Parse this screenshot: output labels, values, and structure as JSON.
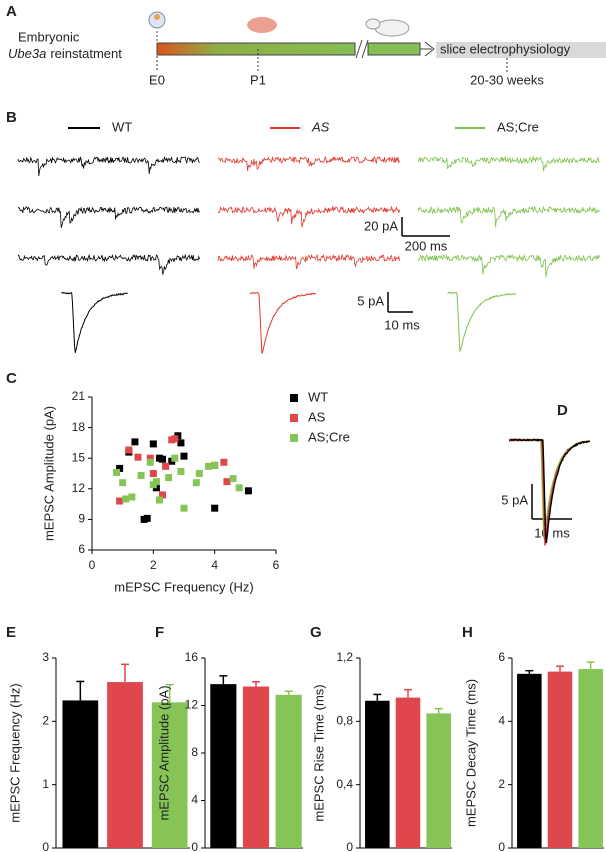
{
  "panel_a": {
    "label": "A",
    "embryonic": "Embryonic",
    "gene": "Ube3a",
    "reinstatement": "reinstatment",
    "stage_label": "slice electrophysiology",
    "ticks": [
      "E0",
      "P1",
      "20-30 weeks"
    ]
  },
  "panel_b": {
    "label": "B",
    "legend": [
      {
        "name": "WT",
        "color": "#000000"
      },
      {
        "name": "AS",
        "color": "#e0382e"
      },
      {
        "name": "AS;Cre",
        "color": "#7cc24a"
      }
    ],
    "scale_bars": [
      "20 pA",
      "200 ms",
      "5 pA",
      "10 ms"
    ]
  },
  "panel_d": {
    "label": "D",
    "scale_bars": [
      "5 pA",
      "10 ms"
    ]
  },
  "chart_data": [
    {
      "type": "scatter",
      "label": "C",
      "xlabel": "mEPSC Frequency (Hz)",
      "ylabel": "mEPSC Amplitude (pA)",
      "xlim": [
        0,
        6
      ],
      "xticks": [
        0,
        2,
        4,
        6
      ],
      "ylim": [
        6,
        21
      ],
      "yticks": [
        6,
        9,
        12,
        15,
        18,
        21
      ],
      "series": [
        {
          "name": "WT",
          "color": "#000000",
          "x": [
            0.9,
            1.4,
            1.2,
            1.7,
            1.8,
            2.0,
            2.2,
            2.1,
            2.6,
            2.8,
            2.9,
            3.0,
            4.0,
            5.1,
            2.3
          ],
          "y": [
            14.0,
            16.6,
            15.6,
            9.0,
            9.1,
            16.4,
            15.0,
            12.1,
            14.7,
            17.2,
            16.5,
            15.2,
            10.1,
            11.8,
            14.9
          ]
        },
        {
          "name": "AS",
          "color": "#e0474c",
          "x": [
            0.9,
            1.2,
            1.5,
            1.9,
            2.0,
            2.3,
            2.6,
            2.7,
            4.0,
            4.3,
            4.4,
            2.4
          ],
          "y": [
            10.8,
            15.8,
            15.1,
            15.0,
            13.5,
            11.4,
            16.8,
            16.9,
            14.3,
            14.6,
            12.7,
            14.2
          ]
        },
        {
          "name": "AS;Cre",
          "color": "#86c457",
          "x": [
            0.8,
            1.0,
            1.1,
            1.3,
            1.6,
            1.9,
            2.0,
            2.1,
            2.2,
            2.5,
            2.7,
            2.9,
            3.0,
            3.4,
            3.5,
            3.8,
            4.0,
            4.6,
            4.8
          ],
          "y": [
            13.6,
            12.6,
            11.0,
            11.2,
            13.3,
            14.6,
            12.4,
            12.7,
            10.9,
            13.1,
            15.0,
            13.7,
            10.1,
            12.6,
            13.5,
            14.2,
            14.3,
            13.0,
            12.1
          ]
        }
      ]
    },
    {
      "type": "bar",
      "label": "E",
      "ylabel": "mEPSC Frequency (Hz)",
      "ylim": [
        0,
        3
      ],
      "yticks": [
        0,
        1,
        2,
        3
      ],
      "values": [
        2.33,
        2.62,
        2.3
      ],
      "errors": [
        0.3,
        0.28,
        0.28
      ],
      "colors": [
        "#000000",
        "#e0474c",
        "#86c457"
      ]
    },
    {
      "type": "bar",
      "label": "F",
      "ylabel": "mEPSC Amplitude (pA)",
      "ylim": [
        0,
        16
      ],
      "yticks": [
        0,
        4,
        8,
        12,
        16
      ],
      "values": [
        13.8,
        13.6,
        12.9
      ],
      "errors": [
        0.7,
        0.4,
        0.3
      ],
      "colors": [
        "#000000",
        "#e0474c",
        "#86c457"
      ]
    },
    {
      "type": "bar",
      "label": "G",
      "ylabel": "mEPSC Rise Time (ms)",
      "ylim": [
        0,
        1.2
      ],
      "yticks": [
        0,
        {
          "value": 0.4,
          "label": "0,4"
        },
        {
          "value": 0.8,
          "label": "0,8"
        },
        {
          "value": 1.2,
          "label": "1,2"
        }
      ],
      "values": [
        0.93,
        0.95,
        0.85
      ],
      "errors": [
        0.04,
        0.05,
        0.03
      ],
      "colors": [
        "#000000",
        "#e0474c",
        "#86c457"
      ]
    },
    {
      "type": "bar",
      "label": "H",
      "ylabel": "mEPSC  Decay Time (ms)",
      "ylim": [
        0,
        6
      ],
      "yticks": [
        0,
        2,
        4,
        6
      ],
      "values": [
        5.5,
        5.57,
        5.65
      ],
      "errors": [
        0.1,
        0.17,
        0.22
      ],
      "colors": [
        "#000000",
        "#e0474c",
        "#86c457"
      ]
    }
  ]
}
